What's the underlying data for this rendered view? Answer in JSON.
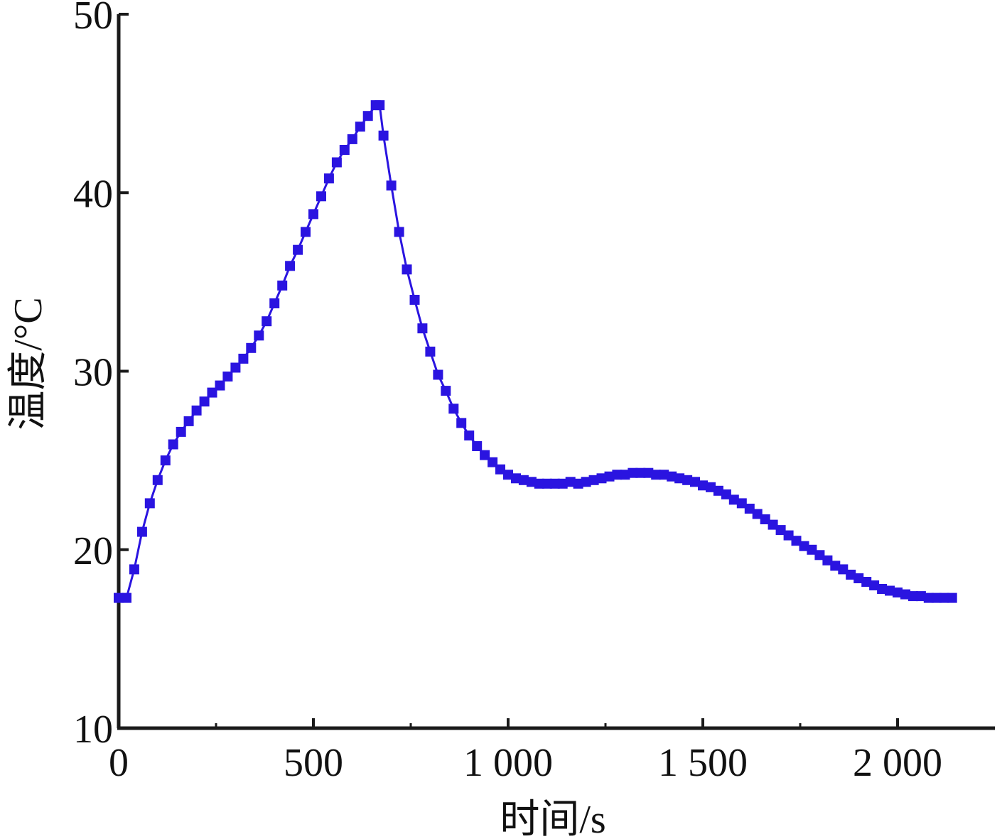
{
  "chart_data": {
    "type": "line",
    "title": "",
    "xlabel": "时间/s",
    "ylabel": "温度/°C",
    "xlim": [
      0,
      2250
    ],
    "ylim": [
      10,
      50
    ],
    "x_ticks": [
      0,
      500,
      1000,
      1500,
      2000
    ],
    "x_tick_labels": [
      "0",
      "500",
      "1 000",
      "1 500",
      "2 000"
    ],
    "x_minor_ticks": [
      250,
      750,
      1250,
      1750
    ],
    "y_ticks": [
      10,
      20,
      30,
      40,
      50
    ],
    "y_tick_labels": [
      "10",
      "20",
      "30",
      "40",
      "50"
    ],
    "grid": false,
    "series": [
      {
        "color": "#2a14e0",
        "marker": "square",
        "x": [
          0,
          20,
          40,
          60,
          80,
          100,
          120,
          140,
          160,
          180,
          200,
          220,
          240,
          260,
          280,
          300,
          320,
          340,
          360,
          380,
          400,
          420,
          440,
          460,
          480,
          500,
          520,
          540,
          560,
          580,
          600,
          620,
          640,
          660,
          670,
          680,
          700,
          720,
          740,
          760,
          780,
          800,
          820,
          840,
          860,
          880,
          900,
          920,
          940,
          960,
          980,
          1000,
          1020,
          1040,
          1060,
          1080,
          1100,
          1120,
          1140,
          1160,
          1180,
          1200,
          1220,
          1240,
          1260,
          1280,
          1300,
          1320,
          1340,
          1360,
          1380,
          1400,
          1420,
          1440,
          1460,
          1480,
          1500,
          1520,
          1540,
          1560,
          1580,
          1600,
          1620,
          1640,
          1660,
          1680,
          1700,
          1720,
          1740,
          1760,
          1780,
          1800,
          1820,
          1840,
          1860,
          1880,
          1900,
          1920,
          1940,
          1960,
          1980,
          2000,
          2020,
          2040,
          2060,
          2080,
          2100,
          2120,
          2140
        ],
        "y": [
          17.3,
          17.3,
          18.9,
          21.0,
          22.6,
          23.9,
          25.0,
          25.9,
          26.6,
          27.2,
          27.8,
          28.3,
          28.8,
          29.2,
          29.7,
          30.2,
          30.7,
          31.3,
          32.0,
          32.8,
          33.8,
          34.8,
          35.9,
          36.8,
          37.8,
          38.8,
          39.8,
          40.8,
          41.7,
          42.4,
          43.0,
          43.7,
          44.3,
          44.9,
          44.9,
          43.2,
          40.4,
          37.8,
          35.7,
          34.0,
          32.4,
          31.1,
          29.8,
          28.9,
          27.9,
          27.1,
          26.4,
          25.8,
          25.3,
          24.9,
          24.5,
          24.2,
          24.0,
          23.9,
          23.8,
          23.7,
          23.7,
          23.7,
          23.7,
          23.8,
          23.7,
          23.8,
          23.9,
          24.0,
          24.1,
          24.2,
          24.2,
          24.3,
          24.3,
          24.3,
          24.2,
          24.2,
          24.1,
          24.0,
          23.9,
          23.8,
          23.6,
          23.5,
          23.3,
          23.1,
          22.8,
          22.6,
          22.3,
          22.0,
          21.7,
          21.4,
          21.1,
          20.8,
          20.5,
          20.2,
          20.0,
          19.7,
          19.4,
          19.1,
          18.9,
          18.6,
          18.4,
          18.2,
          18.0,
          17.8,
          17.7,
          17.6,
          17.5,
          17.4,
          17.4,
          17.3,
          17.3,
          17.3,
          17.3
        ]
      }
    ]
  }
}
